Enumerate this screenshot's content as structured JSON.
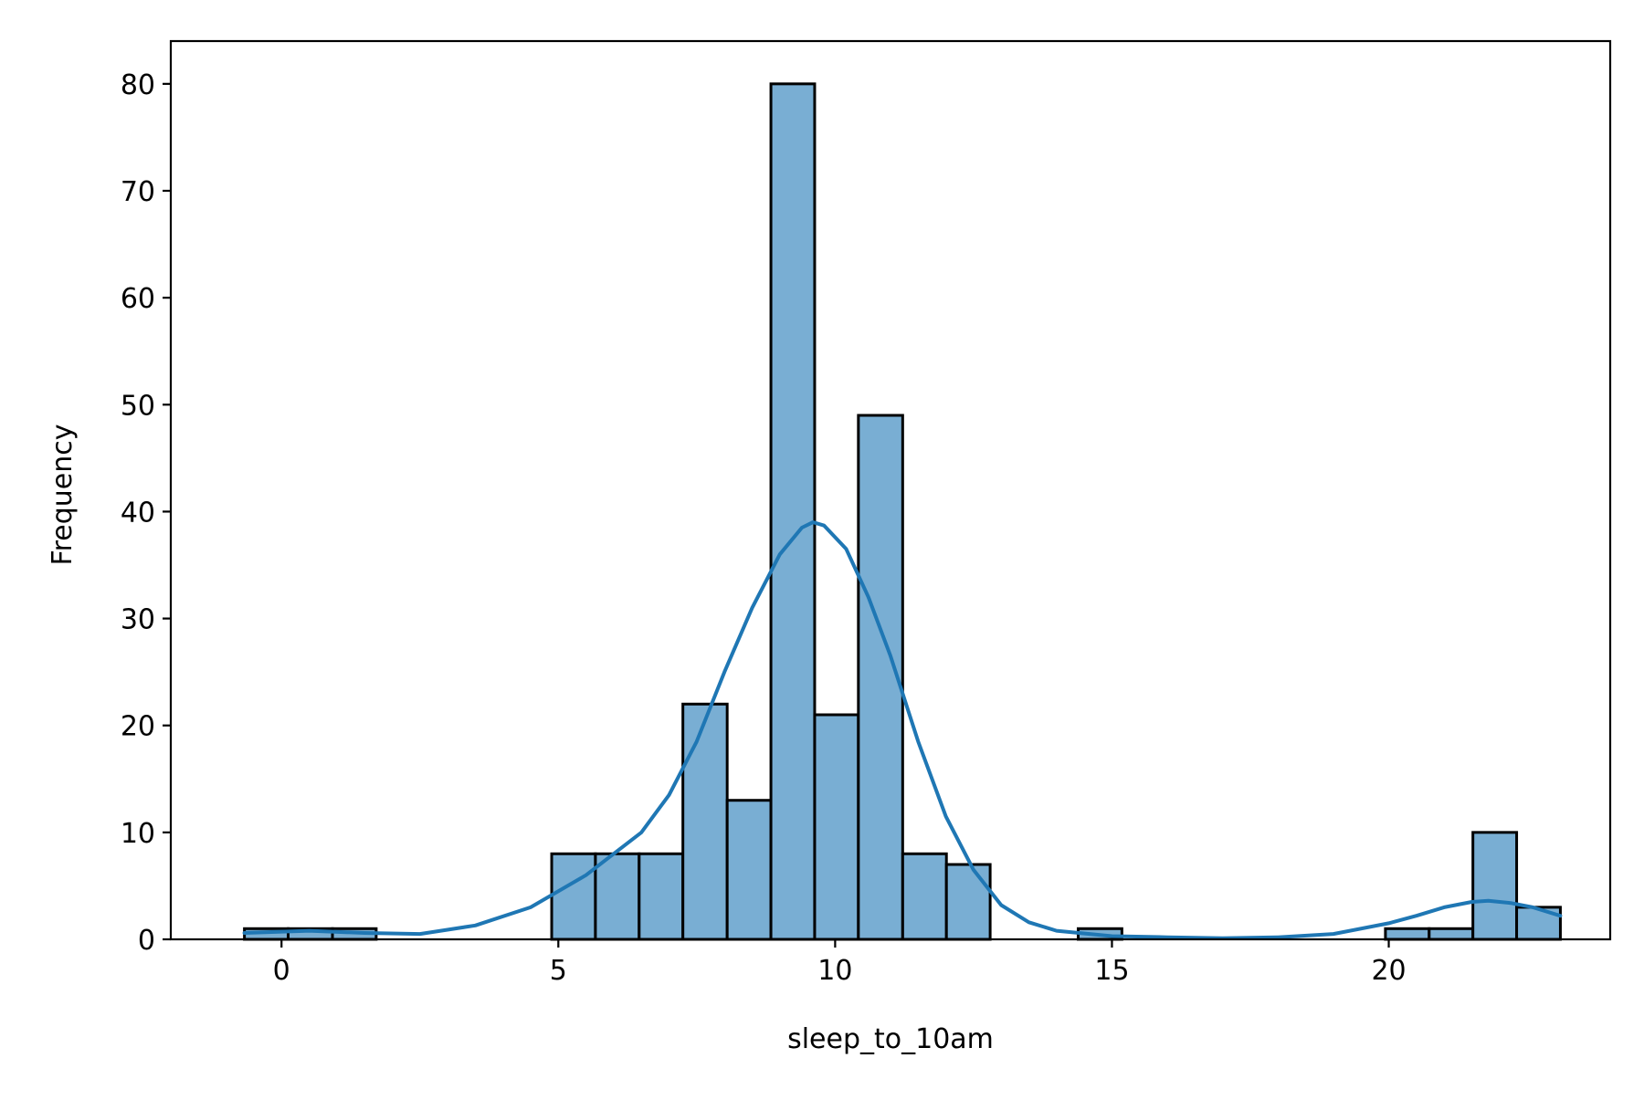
{
  "chart_data": {
    "type": "bar",
    "subtype": "histogram_with_kde",
    "title": "",
    "xlabel": "sleep_to_10am",
    "ylabel": "Frequency",
    "xlim": [
      -2.0,
      24.0
    ],
    "ylim": [
      0,
      84
    ],
    "x_ticks": [
      0,
      5,
      10,
      15,
      20
    ],
    "y_ticks": [
      0,
      10,
      20,
      30,
      40,
      50,
      60,
      70,
      80
    ],
    "grid": false,
    "legend": "none",
    "colors": {
      "bar_fill": "#79aed3",
      "bar_edge": "#000000",
      "kde_line": "#1f77b4"
    },
    "bins": [
      {
        "x0": -0.67,
        "x1": 0.12,
        "count": 1
      },
      {
        "x0": 0.12,
        "x1": 0.92,
        "count": 1
      },
      {
        "x0": 0.92,
        "x1": 1.71,
        "count": 1
      },
      {
        "x0": 4.88,
        "x1": 5.67,
        "count": 8
      },
      {
        "x0": 5.67,
        "x1": 6.46,
        "count": 8
      },
      {
        "x0": 6.46,
        "x1": 7.25,
        "count": 8
      },
      {
        "x0": 7.25,
        "x1": 8.05,
        "count": 22
      },
      {
        "x0": 8.05,
        "x1": 8.84,
        "count": 13
      },
      {
        "x0": 8.84,
        "x1": 9.63,
        "count": 80
      },
      {
        "x0": 9.63,
        "x1": 10.42,
        "count": 21
      },
      {
        "x0": 10.42,
        "x1": 11.22,
        "count": 49
      },
      {
        "x0": 11.22,
        "x1": 12.01,
        "count": 8
      },
      {
        "x0": 12.01,
        "x1": 12.8,
        "count": 7
      },
      {
        "x0": 14.39,
        "x1": 15.18,
        "count": 1
      },
      {
        "x0": 19.94,
        "x1": 20.73,
        "count": 1
      },
      {
        "x0": 20.73,
        "x1": 21.52,
        "count": 1
      },
      {
        "x0": 21.52,
        "x1": 22.31,
        "count": 10
      },
      {
        "x0": 22.31,
        "x1": 23.1,
        "count": 3
      }
    ],
    "kde": {
      "x": [
        -0.67,
        0.5,
        1.5,
        2.5,
        3.5,
        4.5,
        5.5,
        6.5,
        7.0,
        7.5,
        8.0,
        8.5,
        9.0,
        9.4,
        9.6,
        9.8,
        10.2,
        10.6,
        11.0,
        11.5,
        12.0,
        12.5,
        13.0,
        13.5,
        14.0,
        15.0,
        16.0,
        17.0,
        18.0,
        19.0,
        20.0,
        20.5,
        21.0,
        21.5,
        21.8,
        22.2,
        22.6,
        23.1
      ],
      "y": [
        0.6,
        0.8,
        0.6,
        0.5,
        1.3,
        3.0,
        6.0,
        10.0,
        13.5,
        18.5,
        25.0,
        31.0,
        36.0,
        38.5,
        39.0,
        38.7,
        36.5,
        32.0,
        26.5,
        18.5,
        11.5,
        6.5,
        3.2,
        1.6,
        0.8,
        0.3,
        0.2,
        0.1,
        0.2,
        0.5,
        1.5,
        2.2,
        3.0,
        3.5,
        3.6,
        3.4,
        3.0,
        2.2
      ]
    }
  }
}
